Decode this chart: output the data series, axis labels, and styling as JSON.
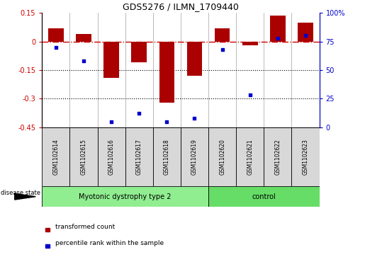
{
  "title": "GDS5276 / ILMN_1709440",
  "samples": [
    "GSM1102614",
    "GSM1102615",
    "GSM1102616",
    "GSM1102617",
    "GSM1102618",
    "GSM1102619",
    "GSM1102620",
    "GSM1102621",
    "GSM1102622",
    "GSM1102623"
  ],
  "red_values": [
    0.07,
    0.04,
    -0.19,
    -0.11,
    -0.32,
    -0.18,
    0.07,
    -0.02,
    0.135,
    0.1
  ],
  "blue_values_pct": [
    70,
    58,
    5,
    12,
    5,
    8,
    68,
    28,
    78,
    80
  ],
  "groups": [
    {
      "label": "Myotonic dystrophy type 2",
      "start": 0,
      "end": 6,
      "color": "#90EE90"
    },
    {
      "label": "control",
      "start": 6,
      "end": 10,
      "color": "#66DD66"
    }
  ],
  "ylim_left": [
    -0.45,
    0.15
  ],
  "ylim_right": [
    0,
    100
  ],
  "yticks_left": [
    0.15,
    0.0,
    -0.15,
    -0.3,
    -0.45
  ],
  "yticks_right": [
    100,
    75,
    50,
    25,
    0
  ],
  "dotted_lines": [
    -0.15,
    -0.3
  ],
  "left_axis_color": "#cc0000",
  "right_axis_color": "#0000cc",
  "bar_color": "#aa0000",
  "dot_color": "#0000cc",
  "disease_state_label": "disease state",
  "legend_red": "transformed count",
  "legend_blue": "percentile rank within the sample",
  "bg_color": "#d8d8d8",
  "bar_width": 0.55
}
